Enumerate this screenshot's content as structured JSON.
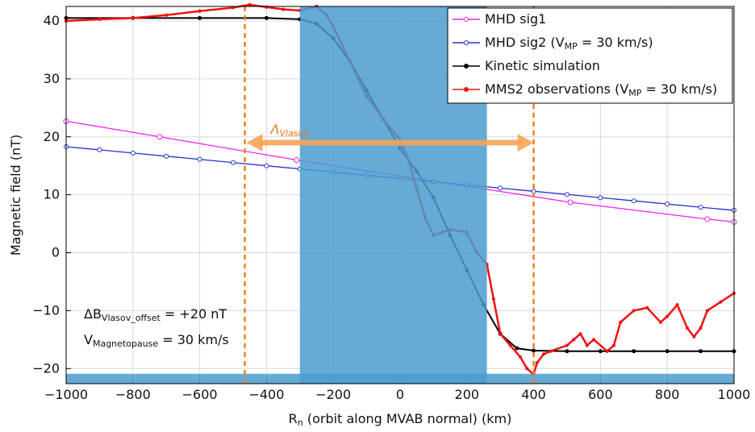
{
  "chart_data": {
    "type": "line",
    "xlabel": "R_{n} (orbit along MVAB normal) (km)",
    "ylabel": "Magnetic field (nT)",
    "xlim": [
      -1000,
      1000
    ],
    "ylim": [
      -22.6,
      42.5
    ],
    "xticks": [
      {
        "value": -1000,
        "label": "−1000"
      },
      {
        "value": -800,
        "label": "−800"
      },
      {
        "value": -600,
        "label": "−600"
      },
      {
        "value": -400,
        "label": "−400"
      },
      {
        "value": -200,
        "label": "−200"
      },
      0,
      200,
      400,
      600,
      800,
      1000
    ],
    "yticks": [
      {
        "value": -20,
        "label": "−20"
      },
      {
        "value": -10,
        "label": "−10"
      },
      0,
      10,
      20,
      30,
      40
    ],
    "grid": true,
    "legend": "upper right",
    "shaded_spans": [
      {
        "x": [
          -300,
          260
        ],
        "y": [
          -22.6,
          42.5
        ],
        "color": "#4a9ccf"
      },
      {
        "x": [
          -1000,
          1000
        ],
        "y": [
          -22.6,
          -20.9
        ],
        "color": "#4a9ccf"
      }
    ],
    "vlines": {
      "x": [
        -465,
        400
      ],
      "color": "#f07f1e"
    },
    "arrow": {
      "x": [
        -460,
        400
      ],
      "y": 19,
      "color": "#f5a55a",
      "label": "Λ_{Vlasov}"
    },
    "annotations": [
      "ΔB_{Vlasov_offset} = +20 nT",
      "V_{Magnetopause} = 30 km/s"
    ],
    "series": [
      {
        "name": "MHD sig1",
        "color": "#ee22ee",
        "x": [
          -1000,
          -720,
          -310,
          510,
          920,
          1000
        ],
        "values": [
          22.7,
          20.0,
          16.0,
          8.7,
          5.8,
          5.3
        ]
      },
      {
        "name": "MHD sig2 (V_{MP} = 30 km/s)",
        "color": "#2233cc",
        "x": [
          -1000,
          -900,
          -800,
          -700,
          -600,
          -500,
          -400,
          -300,
          -200,
          -100,
          0,
          100,
          200,
          300,
          400,
          500,
          600,
          700,
          800,
          900,
          1000
        ],
        "values": [
          18.3,
          17.75,
          17.2,
          16.65,
          16.1,
          15.55,
          15.0,
          14.45,
          13.9,
          13.35,
          12.8,
          12.25,
          11.7,
          11.15,
          10.6,
          10.05,
          9.5,
          8.95,
          8.4,
          7.85,
          7.3
        ]
      },
      {
        "name": "Kinetic simulation",
        "color": "#000000",
        "x": [
          -1000,
          -800,
          -600,
          -400,
          -300,
          -250,
          -200,
          -150,
          -100,
          -50,
          0,
          50,
          100,
          150,
          200,
          250,
          300,
          350,
          400,
          500,
          600,
          700,
          800,
          900,
          1000
        ],
        "values": [
          40.5,
          40.5,
          40.5,
          40.5,
          40.3,
          39.5,
          37,
          33,
          28,
          23,
          18,
          14,
          9.5,
          3,
          -3,
          -9,
          -14,
          -16.5,
          -16.9,
          -17,
          -17,
          -17,
          -17,
          -17,
          -17
        ]
      },
      {
        "name": "MMS2 observations (V_{MP} = 30 km/s)",
        "color": "#ee1111",
        "x": [
          -1000,
          -900,
          -800,
          -700,
          -600,
          -500,
          -450,
          -400,
          -350,
          -300,
          -250,
          -220,
          -200,
          -150,
          -100,
          -50,
          0,
          25,
          50,
          75,
          100,
          125,
          150,
          200,
          230,
          260,
          280,
          300,
          330,
          360,
          380,
          400,
          410,
          430,
          450,
          500,
          520,
          540,
          560,
          580,
          620,
          640,
          660,
          700,
          740,
          780,
          800,
          830,
          860,
          880,
          900,
          920,
          960,
          1000
        ],
        "values": [
          40,
          40.3,
          40.5,
          41,
          41.7,
          42.3,
          42.8,
          42.4,
          42,
          41.8,
          42.5,
          41,
          39,
          33,
          27,
          23,
          19.5,
          16,
          11,
          6,
          3,
          3.5,
          4,
          3.5,
          0,
          -2,
          -8,
          -14,
          -16,
          -18,
          -20,
          -21,
          -19,
          -17.5,
          -17,
          -16,
          -15,
          -14,
          -16,
          -15,
          -17,
          -16,
          -12,
          -10,
          -9.5,
          -12,
          -11,
          -9,
          -13,
          -14.5,
          -13,
          -10,
          -8.5,
          -7
        ]
      }
    ]
  }
}
